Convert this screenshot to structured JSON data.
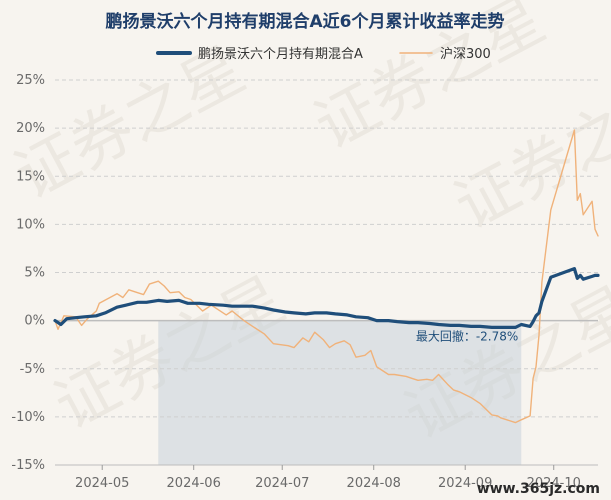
{
  "chart_data": {
    "type": "line",
    "title": "鹏扬景沃六个月持有期混合A近6个月累计收益率走势",
    "ylim": [
      -15,
      25
    ],
    "yticks": [
      -15,
      -10,
      -5,
      0,
      5,
      10,
      15,
      20,
      25
    ],
    "ytick_labels": [
      "-15%",
      "-10%",
      "-5%",
      "0%",
      "5%",
      "10%",
      "15%",
      "20%",
      "25%"
    ],
    "x_range": [
      "2024-04-15",
      "2024-10-16"
    ],
    "xticks": [
      "2024-05-01",
      "2024-06-01",
      "2024-07-01",
      "2024-08-01",
      "2024-09-01",
      "2024-10-01"
    ],
    "xtick_labels": [
      "2024-05",
      "2024-06",
      "2024-07",
      "2024-08",
      "2024-09",
      "2024-10"
    ],
    "grid": true,
    "legend_position": "top",
    "series": [
      {
        "name": "鹏扬景沃六个月持有期混合A",
        "color": "#1f4e7a",
        "points": [
          [
            "2024-04-15",
            0.0
          ],
          [
            "2024-04-17",
            -0.4
          ],
          [
            "2024-04-19",
            0.2
          ],
          [
            "2024-04-22",
            0.3
          ],
          [
            "2024-04-25",
            0.4
          ],
          [
            "2024-04-29",
            0.5
          ],
          [
            "2024-05-02",
            0.8
          ],
          [
            "2024-05-06",
            1.4
          ],
          [
            "2024-05-09",
            1.6
          ],
          [
            "2024-05-13",
            1.9
          ],
          [
            "2024-05-16",
            1.9
          ],
          [
            "2024-05-20",
            2.1
          ],
          [
            "2024-05-23",
            2.0
          ],
          [
            "2024-05-27",
            2.1
          ],
          [
            "2024-05-30",
            1.8
          ],
          [
            "2024-06-03",
            1.8
          ],
          [
            "2024-06-06",
            1.7
          ],
          [
            "2024-06-11",
            1.6
          ],
          [
            "2024-06-14",
            1.5
          ],
          [
            "2024-06-18",
            1.5
          ],
          [
            "2024-06-21",
            1.5
          ],
          [
            "2024-06-25",
            1.3
          ],
          [
            "2024-06-28",
            1.1
          ],
          [
            "2024-07-02",
            0.9
          ],
          [
            "2024-07-05",
            0.8
          ],
          [
            "2024-07-09",
            0.7
          ],
          [
            "2024-07-12",
            0.8
          ],
          [
            "2024-07-16",
            0.8
          ],
          [
            "2024-07-19",
            0.7
          ],
          [
            "2024-07-23",
            0.6
          ],
          [
            "2024-07-26",
            0.4
          ],
          [
            "2024-07-30",
            0.3
          ],
          [
            "2024-08-02",
            0.0
          ],
          [
            "2024-08-06",
            0.0
          ],
          [
            "2024-08-09",
            -0.1
          ],
          [
            "2024-08-13",
            -0.2
          ],
          [
            "2024-08-16",
            -0.2
          ],
          [
            "2024-08-20",
            -0.3
          ],
          [
            "2024-08-23",
            -0.4
          ],
          [
            "2024-08-27",
            -0.5
          ],
          [
            "2024-08-30",
            -0.5
          ],
          [
            "2024-09-03",
            -0.6
          ],
          [
            "2024-09-06",
            -0.6
          ],
          [
            "2024-09-10",
            -0.7
          ],
          [
            "2024-09-13",
            -0.7
          ],
          [
            "2024-09-18",
            -0.7
          ],
          [
            "2024-09-20",
            -0.4
          ],
          [
            "2024-09-23",
            -0.6
          ],
          [
            "2024-09-24",
            -0.1
          ],
          [
            "2024-09-25",
            0.5
          ],
          [
            "2024-09-26",
            0.8
          ],
          [
            "2024-09-27",
            2.0
          ],
          [
            "2024-09-30",
            4.5
          ],
          [
            "2024-10-08",
            5.4
          ],
          [
            "2024-10-09",
            4.4
          ],
          [
            "2024-10-10",
            4.7
          ],
          [
            "2024-10-11",
            4.3
          ],
          [
            "2024-10-14",
            4.6
          ],
          [
            "2024-10-15",
            4.7
          ],
          [
            "2024-10-16",
            4.7
          ]
        ]
      },
      {
        "name": "沪深300",
        "color": "#f0b27a",
        "points": [
          [
            "2024-04-15",
            0.0
          ],
          [
            "2024-04-16",
            -0.9
          ],
          [
            "2024-04-18",
            0.5
          ],
          [
            "2024-04-22",
            0.4
          ],
          [
            "2024-04-24",
            -0.5
          ],
          [
            "2024-04-26",
            0.2
          ],
          [
            "2024-04-29",
            1.0
          ],
          [
            "2024-04-30",
            1.8
          ],
          [
            "2024-05-06",
            2.8
          ],
          [
            "2024-05-08",
            2.4
          ],
          [
            "2024-05-10",
            3.2
          ],
          [
            "2024-05-13",
            2.9
          ],
          [
            "2024-05-15",
            2.7
          ],
          [
            "2024-05-17",
            3.8
          ],
          [
            "2024-05-20",
            4.1
          ],
          [
            "2024-05-22",
            3.6
          ],
          [
            "2024-05-24",
            2.9
          ],
          [
            "2024-05-27",
            3.0
          ],
          [
            "2024-05-29",
            2.4
          ],
          [
            "2024-05-31",
            2.2
          ],
          [
            "2024-06-04",
            1.0
          ],
          [
            "2024-06-07",
            1.6
          ],
          [
            "2024-06-12",
            0.6
          ],
          [
            "2024-06-14",
            1.0
          ],
          [
            "2024-06-18",
            0.0
          ],
          [
            "2024-06-21",
            -0.6
          ],
          [
            "2024-06-25",
            -1.4
          ],
          [
            "2024-06-28",
            -2.4
          ],
          [
            "2024-07-03",
            -2.6
          ],
          [
            "2024-07-05",
            -2.8
          ],
          [
            "2024-07-08",
            -1.8
          ],
          [
            "2024-07-10",
            -2.2
          ],
          [
            "2024-07-12",
            -1.2
          ],
          [
            "2024-07-15",
            -2.0
          ],
          [
            "2024-07-17",
            -2.8
          ],
          [
            "2024-07-19",
            -2.4
          ],
          [
            "2024-07-22",
            -2.1
          ],
          [
            "2024-07-24",
            -2.5
          ],
          [
            "2024-07-26",
            -3.8
          ],
          [
            "2024-07-29",
            -3.6
          ],
          [
            "2024-07-31",
            -3.1
          ],
          [
            "2024-08-02",
            -4.8
          ],
          [
            "2024-08-06",
            -5.6
          ],
          [
            "2024-08-08",
            -5.6
          ],
          [
            "2024-08-12",
            -5.8
          ],
          [
            "2024-08-14",
            -6.0
          ],
          [
            "2024-08-16",
            -6.2
          ],
          [
            "2024-08-19",
            -6.1
          ],
          [
            "2024-08-21",
            -6.2
          ],
          [
            "2024-08-23",
            -5.6
          ],
          [
            "2024-08-26",
            -6.6
          ],
          [
            "2024-08-28",
            -7.2
          ],
          [
            "2024-08-30",
            -7.4
          ],
          [
            "2024-09-03",
            -8.0
          ],
          [
            "2024-09-06",
            -8.6
          ],
          [
            "2024-09-10",
            -9.8
          ],
          [
            "2024-09-12",
            -9.9
          ],
          [
            "2024-09-13",
            -10.1
          ],
          [
            "2024-09-18",
            -10.6
          ],
          [
            "2024-09-20",
            -10.3
          ],
          [
            "2024-09-23",
            -9.9
          ],
          [
            "2024-09-24",
            -6.0
          ],
          [
            "2024-09-25",
            -4.8
          ],
          [
            "2024-09-26",
            -1.5
          ],
          [
            "2024-09-27",
            4.0
          ],
          [
            "2024-09-30",
            11.5
          ],
          [
            "2024-10-08",
            19.8
          ],
          [
            "2024-10-09",
            12.5
          ],
          [
            "2024-10-10",
            13.2
          ],
          [
            "2024-10-11",
            11.0
          ],
          [
            "2024-10-14",
            12.4
          ],
          [
            "2024-10-15",
            9.5
          ],
          [
            "2024-10-16",
            8.8
          ]
        ]
      }
    ],
    "drawdown": {
      "label": "最大回撤：-2.78%",
      "start": "2024-05-20",
      "end": "2024-09-20",
      "color": "#c9d2db"
    }
  },
  "watermark": {
    "text": "证券之星",
    "color": "#e4dfd6"
  },
  "brand": {
    "text": "www.365jz.com"
  }
}
